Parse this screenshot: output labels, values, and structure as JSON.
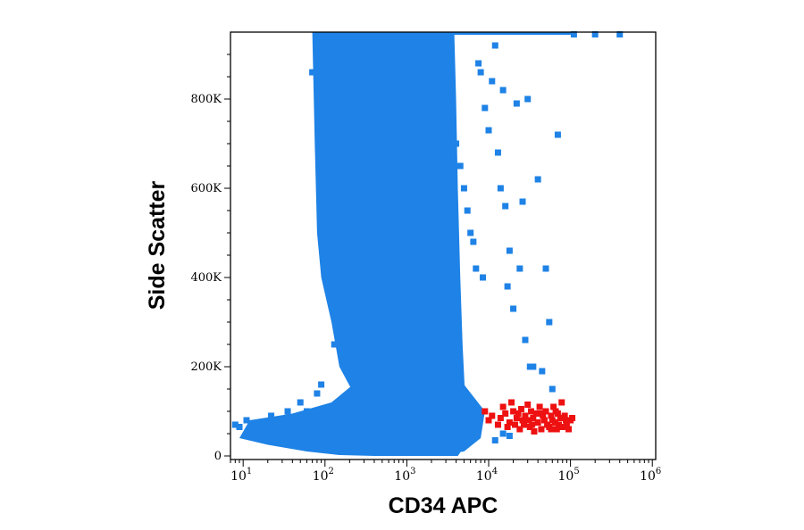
{
  "chart_data": {
    "type": "scatter",
    "xlabel": "CD34 APC",
    "ylabel": "Side Scatter",
    "x_scale": "log",
    "xlim": [
      7,
      1100000
    ],
    "ylim": [
      -8000,
      950000
    ],
    "grid": false,
    "x_ticks": [
      {
        "value": 10,
        "base": "10",
        "exp": "1"
      },
      {
        "value": 100,
        "base": "10",
        "exp": "2"
      },
      {
        "value": 1000,
        "base": "10",
        "exp": "3"
      },
      {
        "value": 10000,
        "base": "10",
        "exp": "4"
      },
      {
        "value": 100000,
        "base": "10",
        "exp": "5"
      },
      {
        "value": 1000000,
        "base": "10",
        "exp": "6"
      }
    ],
    "y_ticks": [
      {
        "value": 0,
        "label": "0"
      },
      {
        "value": 200000,
        "label": "200K"
      },
      {
        "value": 400000,
        "label": "400K"
      },
      {
        "value": 600000,
        "label": "600K"
      },
      {
        "value": 800000,
        "label": "800K"
      }
    ],
    "series": [
      {
        "color": "#1e82e6",
        "points": [
          [
            8,
            70000
          ],
          [
            9,
            65000
          ],
          [
            11,
            80000
          ],
          [
            14,
            55000
          ],
          [
            18,
            75000
          ],
          [
            22,
            90000
          ],
          [
            28,
            60000
          ],
          [
            35,
            100000
          ],
          [
            40,
            80000
          ],
          [
            50,
            120000
          ],
          [
            60,
            100000
          ],
          [
            70,
            860000
          ],
          [
            80,
            140000
          ],
          [
            90,
            160000
          ],
          [
            110,
            660000
          ],
          [
            120,
            500000
          ],
          [
            130,
            250000
          ],
          [
            150,
            550000
          ],
          [
            170,
            430000
          ],
          [
            200,
            450000
          ],
          [
            230,
            260000
          ],
          [
            260,
            300000
          ],
          [
            300,
            350000
          ],
          [
            350,
            420000
          ],
          [
            380,
            810000
          ],
          [
            400,
            780000
          ],
          [
            420,
            900000
          ],
          [
            450,
            930000
          ],
          [
            480,
            760000
          ],
          [
            2000,
            930000
          ],
          [
            2500,
            880000
          ],
          [
            3000,
            850000
          ],
          [
            3500,
            820000
          ],
          [
            4000,
            700000
          ],
          [
            4500,
            650000
          ],
          [
            5000,
            600000
          ],
          [
            5500,
            550000
          ],
          [
            6000,
            500000
          ],
          [
            6500,
            480000
          ],
          [
            7000,
            420000
          ],
          [
            7500,
            880000
          ],
          [
            8000,
            860000
          ],
          [
            8500,
            400000
          ],
          [
            9000,
            780000
          ],
          [
            10000,
            730000
          ],
          [
            11000,
            840000
          ],
          [
            12000,
            920000
          ],
          [
            13000,
            680000
          ],
          [
            14000,
            600000
          ],
          [
            15000,
            820000
          ],
          [
            16000,
            560000
          ],
          [
            17000,
            380000
          ],
          [
            18000,
            460000
          ],
          [
            20000,
            330000
          ],
          [
            22000,
            790000
          ],
          [
            24000,
            420000
          ],
          [
            26000,
            570000
          ],
          [
            28000,
            260000
          ],
          [
            30000,
            800000
          ],
          [
            32000,
            200000
          ],
          [
            35000,
            200000
          ],
          [
            40000,
            620000
          ],
          [
            45000,
            190000
          ],
          [
            50000,
            420000
          ],
          [
            55000,
            300000
          ],
          [
            60000,
            150000
          ],
          [
            70000,
            720000
          ],
          [
            110000,
            945000
          ],
          [
            200000,
            945000
          ],
          [
            400000,
            945000
          ],
          [
            12000,
            35000
          ],
          [
            15000,
            50000
          ],
          [
            18000,
            45000
          ]
        ]
      },
      {
        "color": "#ee1111",
        "points": [
          [
            9000,
            100000
          ],
          [
            10000,
            80000
          ],
          [
            11000,
            90000
          ],
          [
            13000,
            70000
          ],
          [
            14000,
            85000
          ],
          [
            15000,
            110000
          ],
          [
            16000,
            95000
          ],
          [
            17000,
            65000
          ],
          [
            18000,
            75000
          ],
          [
            19000,
            120000
          ],
          [
            20000,
            100000
          ],
          [
            21000,
            70000
          ],
          [
            22000,
            85000
          ],
          [
            23000,
            95000
          ],
          [
            24000,
            60000
          ],
          [
            25000,
            105000
          ],
          [
            26000,
            80000
          ],
          [
            27000,
            70000
          ],
          [
            28000,
            90000
          ],
          [
            30000,
            115000
          ],
          [
            31000,
            80000
          ],
          [
            32000,
            65000
          ],
          [
            33000,
            100000
          ],
          [
            35000,
            85000
          ],
          [
            36000,
            55000
          ],
          [
            38000,
            95000
          ],
          [
            40000,
            75000
          ],
          [
            42000,
            110000
          ],
          [
            44000,
            60000
          ],
          [
            46000,
            90000
          ],
          [
            48000,
            80000
          ],
          [
            50000,
            100000
          ],
          [
            52000,
            70000
          ],
          [
            55000,
            65000
          ],
          [
            58000,
            90000
          ],
          [
            60000,
            80000
          ],
          [
            62000,
            110000
          ],
          [
            65000,
            75000
          ],
          [
            68000,
            60000
          ],
          [
            70000,
            95000
          ],
          [
            72000,
            70000
          ],
          [
            75000,
            85000
          ],
          [
            78000,
            120000
          ],
          [
            80000,
            65000
          ],
          [
            85000,
            90000
          ],
          [
            90000,
            70000
          ],
          [
            95000,
            60000
          ],
          [
            100000,
            80000
          ],
          [
            105000,
            85000
          ],
          [
            34000,
            70000
          ],
          [
            44000,
            95000
          ],
          [
            58000,
            60000
          ],
          [
            66000,
            100000
          ],
          [
            88000,
            80000
          ]
        ]
      }
    ]
  }
}
